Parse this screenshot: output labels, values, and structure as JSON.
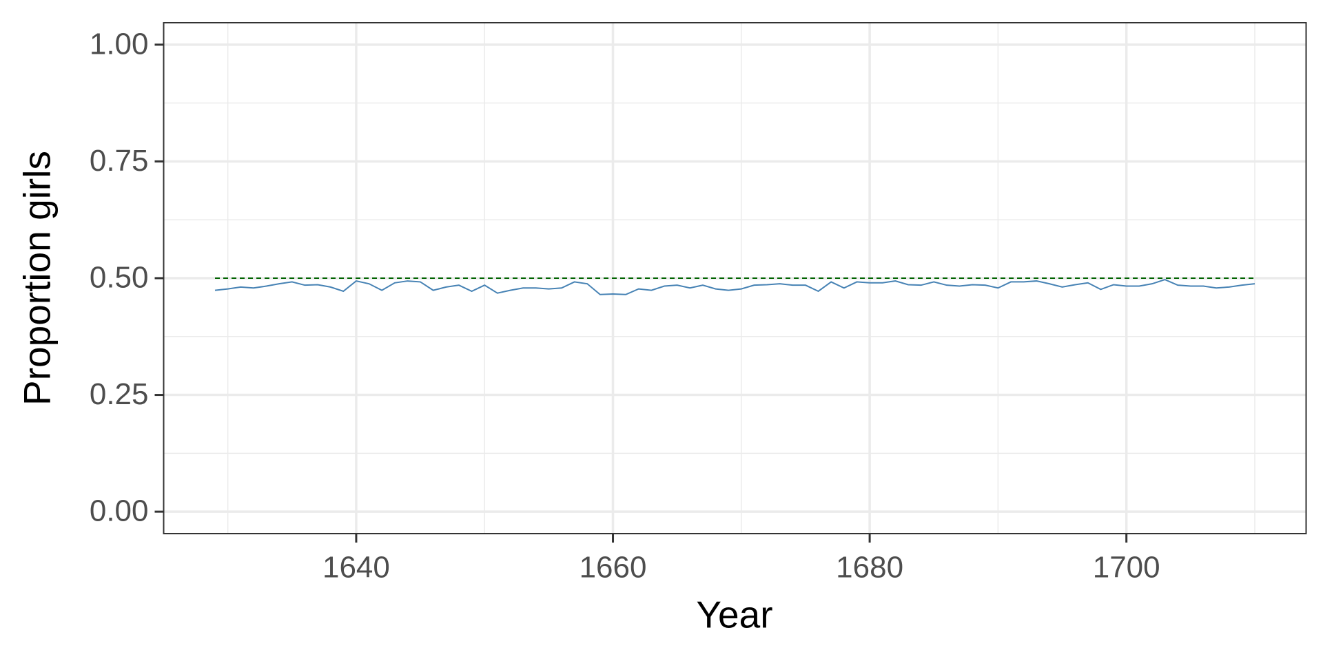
{
  "chart_data": {
    "type": "line",
    "x_label": "Year",
    "y_label": "Proportion girls",
    "x": [
      1629,
      1630,
      1631,
      1632,
      1633,
      1634,
      1635,
      1636,
      1637,
      1638,
      1639,
      1640,
      1641,
      1642,
      1643,
      1644,
      1645,
      1646,
      1647,
      1648,
      1649,
      1650,
      1651,
      1652,
      1653,
      1654,
      1655,
      1656,
      1657,
      1658,
      1659,
      1660,
      1661,
      1662,
      1663,
      1664,
      1665,
      1666,
      1667,
      1668,
      1669,
      1670,
      1671,
      1672,
      1673,
      1674,
      1675,
      1676,
      1677,
      1678,
      1679,
      1680,
      1681,
      1682,
      1683,
      1684,
      1685,
      1686,
      1687,
      1688,
      1689,
      1690,
      1691,
      1692,
      1693,
      1694,
      1695,
      1696,
      1697,
      1698,
      1699,
      1700,
      1701,
      1702,
      1703,
      1704,
      1705,
      1706,
      1707,
      1708,
      1709,
      1710
    ],
    "series": [
      {
        "color": "#4682b4",
        "values": [
          0.474,
          0.477,
          0.481,
          0.479,
          0.483,
          0.488,
          0.492,
          0.485,
          0.486,
          0.481,
          0.472,
          0.494,
          0.488,
          0.474,
          0.49,
          0.494,
          0.492,
          0.474,
          0.481,
          0.485,
          0.472,
          0.485,
          0.468,
          0.474,
          0.479,
          0.479,
          0.477,
          0.479,
          0.492,
          0.488,
          0.465,
          0.466,
          0.465,
          0.477,
          0.474,
          0.483,
          0.485,
          0.479,
          0.485,
          0.477,
          0.474,
          0.477,
          0.485,
          0.486,
          0.488,
          0.485,
          0.485,
          0.472,
          0.492,
          0.479,
          0.492,
          0.49,
          0.49,
          0.494,
          0.486,
          0.485,
          0.492,
          0.485,
          0.483,
          0.486,
          0.485,
          0.479,
          0.492,
          0.492,
          0.494,
          0.488,
          0.481,
          0.486,
          0.49,
          0.476,
          0.486,
          0.483,
          0.483,
          0.488,
          0.497,
          0.485,
          0.483,
          0.483,
          0.479,
          0.481,
          0.485,
          0.488
        ]
      }
    ],
    "hline": {
      "value": 0.5,
      "color": "#006400",
      "dashed": true
    },
    "xlim": [
      1625,
      1714
    ],
    "ylim": [
      -0.047,
      1.047
    ],
    "xticks": [
      1640,
      1660,
      1680,
      1700
    ],
    "yticks": [
      {
        "value": 0,
        "label": "0.00"
      },
      {
        "value": 0.25,
        "label": "0.25"
      },
      {
        "value": 0.5,
        "label": "0.50"
      },
      {
        "value": 0.75,
        "label": "0.75"
      },
      {
        "value": 1,
        "label": "1.00"
      }
    ],
    "minor_xticks": [
      1630,
      1650,
      1670,
      1690,
      1710
    ],
    "minor_yticks": [
      0.125,
      0.375,
      0.625,
      0.875
    ],
    "grid": true
  }
}
